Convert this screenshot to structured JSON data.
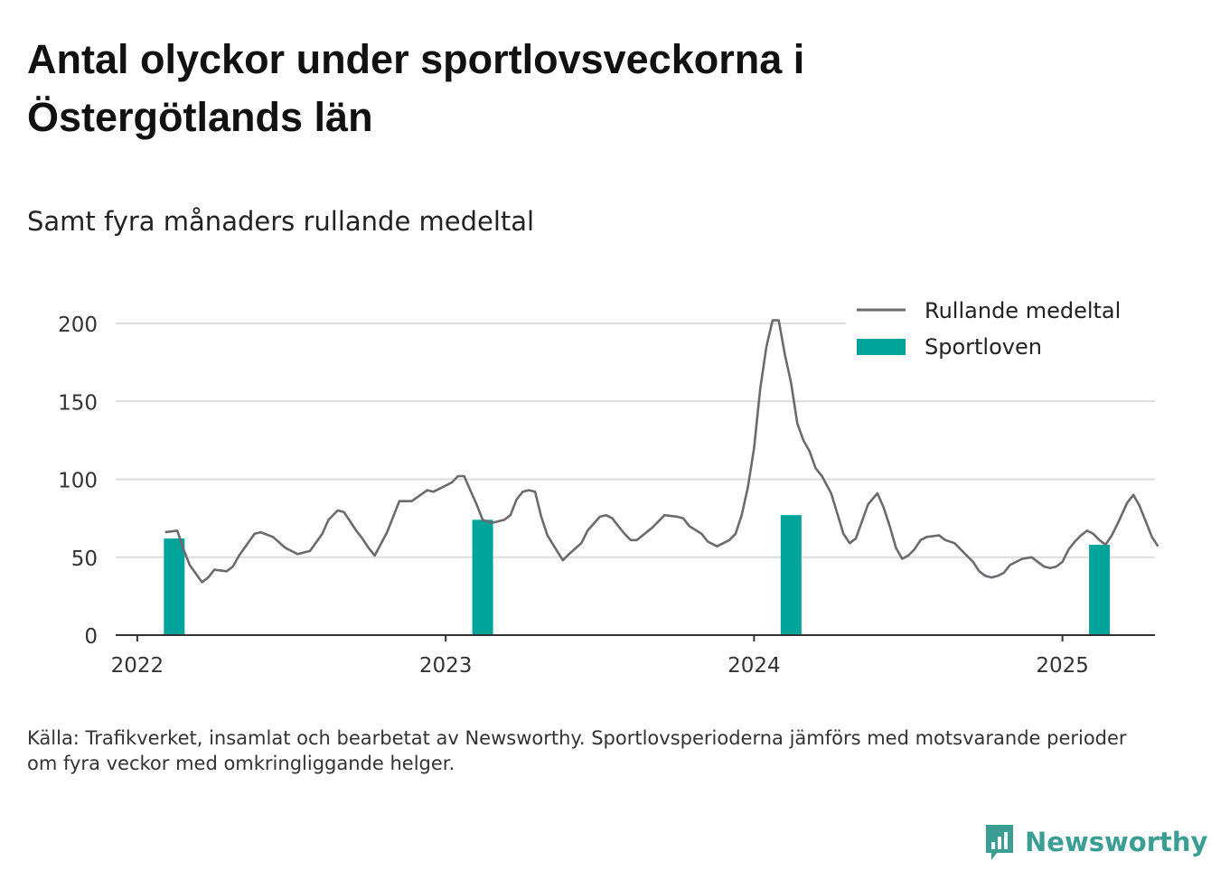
{
  "header": {
    "title": "Antal olyckor under sportlovsveckorna i Östergötlands län",
    "subtitle": "Samt fyra månaders rullande medeltal"
  },
  "footer": {
    "source": "Källa: Trafikverket, insamlat och bearbetat av Newsworthy. Sportlovsperioderna jämförs med motsvarande perioder om fyra veckor med omkringliggande helger.",
    "brand": "Newsworthy"
  },
  "colors": {
    "line": "#6b6b6f",
    "bar": "#00a49a",
    "grid": "#dcdcdc",
    "axis": "#333333",
    "brand": "#3a9e93"
  },
  "chart_data": {
    "type": "bar+line",
    "ylim": [
      0,
      200
    ],
    "yticks": [
      0,
      50,
      100,
      150,
      200
    ],
    "xlim": [
      2021.93,
      2025.3
    ],
    "xticks": [
      2022,
      2023,
      2024,
      2025
    ],
    "xtick_labels": [
      "2022",
      "2023",
      "2024",
      "2025"
    ],
    "grid": true,
    "legend_position": "top-right",
    "series": [
      {
        "name": "Rullande medeltal",
        "kind": "line",
        "points": [
          [
            2022.09,
            66
          ],
          [
            2022.13,
            67
          ],
          [
            2022.15,
            55
          ],
          [
            2022.17,
            45
          ],
          [
            2022.21,
            34
          ],
          [
            2022.23,
            37
          ],
          [
            2022.25,
            42
          ],
          [
            2022.29,
            41
          ],
          [
            2022.31,
            44
          ],
          [
            2022.33,
            51
          ],
          [
            2022.38,
            65
          ],
          [
            2022.4,
            66
          ],
          [
            2022.44,
            63
          ],
          [
            2022.48,
            56
          ],
          [
            2022.52,
            52
          ],
          [
            2022.56,
            54
          ],
          [
            2022.6,
            65
          ],
          [
            2022.62,
            74
          ],
          [
            2022.65,
            80
          ],
          [
            2022.67,
            79
          ],
          [
            2022.71,
            67
          ],
          [
            2022.73,
            62
          ],
          [
            2022.75,
            56
          ],
          [
            2022.77,
            51
          ],
          [
            2022.81,
            66
          ],
          [
            2022.85,
            86
          ],
          [
            2022.89,
            86
          ],
          [
            2022.94,
            93
          ],
          [
            2022.96,
            92
          ],
          [
            2022.98,
            94
          ],
          [
            2023.02,
            98
          ],
          [
            2023.04,
            102
          ],
          [
            2023.06,
            102
          ],
          [
            2023.08,
            93
          ],
          [
            2023.1,
            84
          ],
          [
            2023.12,
            74
          ],
          [
            2023.15,
            72
          ],
          [
            2023.19,
            74
          ],
          [
            2023.21,
            77
          ],
          [
            2023.23,
            87
          ],
          [
            2023.25,
            92
          ],
          [
            2023.27,
            93
          ],
          [
            2023.29,
            92
          ],
          [
            2023.31,
            76
          ],
          [
            2023.33,
            64
          ],
          [
            2023.38,
            48
          ],
          [
            2023.4,
            52
          ],
          [
            2023.44,
            59
          ],
          [
            2023.46,
            67
          ],
          [
            2023.5,
            76
          ],
          [
            2023.52,
            77
          ],
          [
            2023.54,
            75
          ],
          [
            2023.56,
            70
          ],
          [
            2023.58,
            65
          ],
          [
            2023.6,
            61
          ],
          [
            2023.62,
            61
          ],
          [
            2023.67,
            69
          ],
          [
            2023.71,
            77
          ],
          [
            2023.75,
            76
          ],
          [
            2023.77,
            75
          ],
          [
            2023.79,
            70
          ],
          [
            2023.83,
            65
          ],
          [
            2023.85,
            60
          ],
          [
            2023.88,
            57
          ],
          [
            2023.92,
            61
          ],
          [
            2023.94,
            65
          ],
          [
            2023.96,
            77
          ],
          [
            2023.98,
            95
          ],
          [
            2024.0,
            120
          ],
          [
            2024.02,
            158
          ],
          [
            2024.04,
            185
          ],
          [
            2024.06,
            202
          ],
          [
            2024.08,
            202
          ],
          [
            2024.1,
            180
          ],
          [
            2024.12,
            162
          ],
          [
            2024.14,
            136
          ],
          [
            2024.16,
            125
          ],
          [
            2024.18,
            118
          ],
          [
            2024.2,
            107
          ],
          [
            2024.22,
            102
          ],
          [
            2024.25,
            91
          ],
          [
            2024.27,
            78
          ],
          [
            2024.29,
            65
          ],
          [
            2024.31,
            59
          ],
          [
            2024.33,
            62
          ],
          [
            2024.35,
            73
          ],
          [
            2024.37,
            84
          ],
          [
            2024.4,
            91
          ],
          [
            2024.42,
            82
          ],
          [
            2024.44,
            70
          ],
          [
            2024.46,
            56
          ],
          [
            2024.48,
            49
          ],
          [
            2024.5,
            51
          ],
          [
            2024.52,
            55
          ],
          [
            2024.54,
            61
          ],
          [
            2024.56,
            63
          ],
          [
            2024.6,
            64
          ],
          [
            2024.62,
            61
          ],
          [
            2024.65,
            59
          ],
          [
            2024.67,
            55
          ],
          [
            2024.69,
            51
          ],
          [
            2024.71,
            47
          ],
          [
            2024.73,
            41
          ],
          [
            2024.75,
            38
          ],
          [
            2024.77,
            37
          ],
          [
            2024.79,
            38
          ],
          [
            2024.81,
            40
          ],
          [
            2024.83,
            45
          ],
          [
            2024.85,
            47
          ],
          [
            2024.87,
            49
          ],
          [
            2024.9,
            50
          ],
          [
            2024.92,
            47
          ],
          [
            2024.94,
            44
          ],
          [
            2024.96,
            43
          ],
          [
            2024.98,
            44
          ],
          [
            2025.0,
            47
          ],
          [
            2025.02,
            55
          ],
          [
            2025.04,
            60
          ],
          [
            2025.06,
            64
          ],
          [
            2025.08,
            67
          ],
          [
            2025.1,
            65
          ],
          [
            2025.12,
            61
          ],
          [
            2025.14,
            58
          ],
          [
            2025.16,
            64
          ],
          [
            2025.18,
            72
          ],
          [
            2025.21,
            85
          ],
          [
            2025.23,
            90
          ],
          [
            2025.25,
            83
          ],
          [
            2025.27,
            73
          ],
          [
            2025.29,
            63
          ],
          [
            2025.31,
            57
          ]
        ]
      },
      {
        "name": "Sportloven",
        "kind": "bar",
        "points": [
          [
            2022.12,
            62
          ],
          [
            2023.12,
            74
          ],
          [
            2024.12,
            77
          ],
          [
            2025.12,
            58
          ]
        ]
      }
    ]
  }
}
